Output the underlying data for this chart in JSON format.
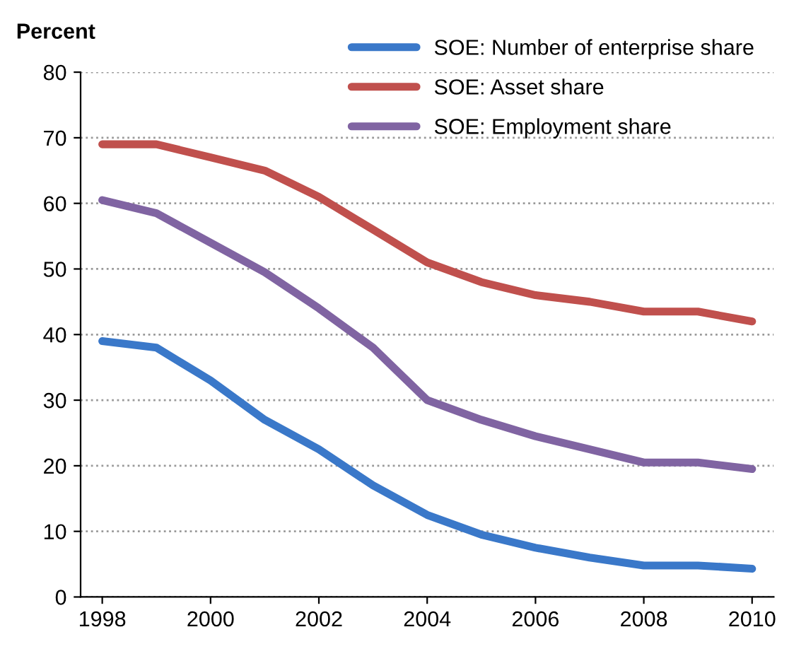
{
  "chart_data": {
    "type": "line",
    "ylabel": "Percent",
    "x": [
      1998,
      1999,
      2000,
      2001,
      2002,
      2003,
      2004,
      2005,
      2006,
      2007,
      2008,
      2009,
      2010
    ],
    "series": [
      {
        "name": "SOE: Number of enterprise share",
        "color": "#3a78c9",
        "values": [
          39,
          38,
          33,
          27,
          22.5,
          17,
          12.5,
          9.5,
          7.5,
          6,
          4.8,
          4.8,
          4.3
        ]
      },
      {
        "name": "SOE: Asset share",
        "color": "#c0504d",
        "values": [
          69,
          69,
          67,
          65,
          61,
          56,
          51,
          48,
          46,
          45,
          43.5,
          43.5,
          42
        ]
      },
      {
        "name": "SOE: Employment share",
        "color": "#8064a2",
        "values": [
          60.5,
          58.5,
          54,
          49.5,
          44,
          38,
          30,
          27,
          24.5,
          22.5,
          20.5,
          20.5,
          19.5
        ]
      }
    ],
    "xlim": [
      1997.6,
      2010.4
    ],
    "xticks": [
      1998,
      2000,
      2002,
      2004,
      2006,
      2008,
      2010
    ],
    "ylim": [
      0,
      80
    ],
    "yticks": [
      0,
      10,
      20,
      30,
      40,
      50,
      60,
      70,
      80
    ],
    "grid": "y",
    "legend": "top right",
    "marker": "none",
    "line_style": "solid"
  }
}
